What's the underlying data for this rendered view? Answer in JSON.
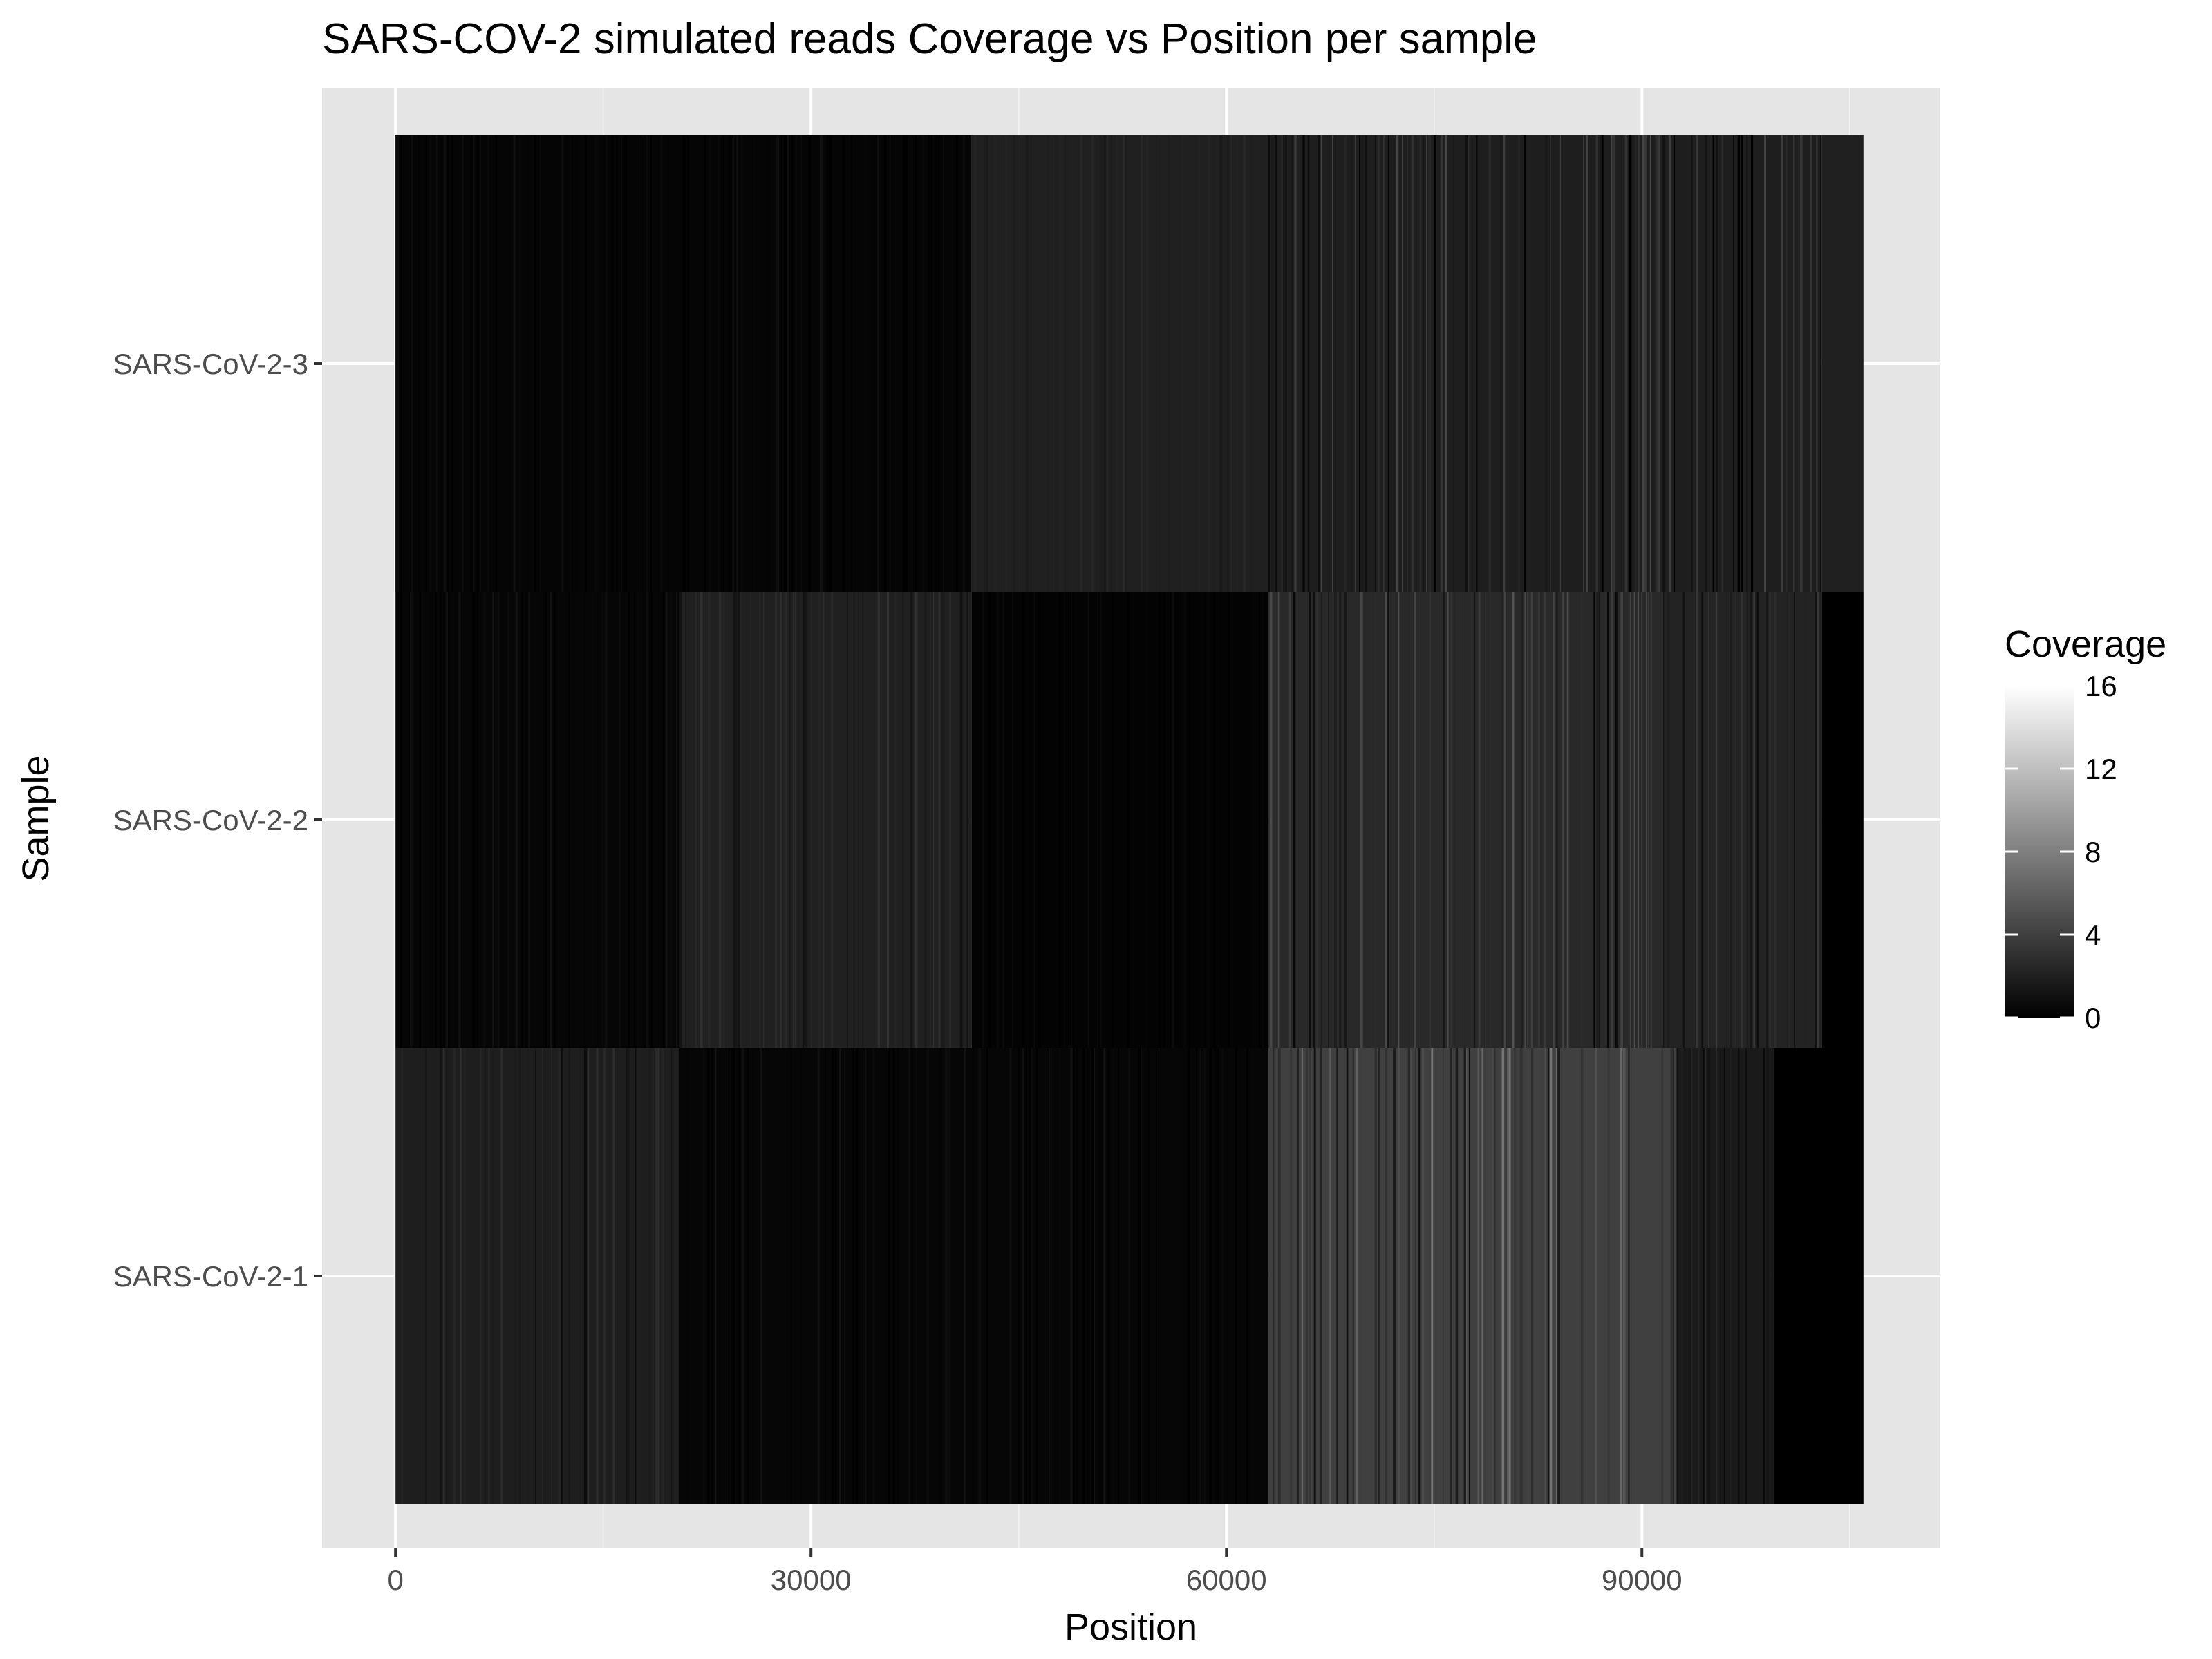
{
  "chart_data": {
    "type": "heatmap",
    "title": "SARS-COV-2 simulated reads Coverage vs Position per sample",
    "xlabel": "Position",
    "ylabel": "Sample",
    "xlim": [
      -5300,
      111500
    ],
    "x_ticks": [
      0,
      30000,
      60000,
      90000
    ],
    "x_tick_labels": [
      "0",
      "30000",
      "60000",
      "90000"
    ],
    "x_minor_ticks": [
      15000,
      45000,
      75000,
      105000
    ],
    "rows": [
      "SARS-CoV-2-1",
      "SARS-CoV-2-2",
      "SARS-CoV-2-3"
    ],
    "grid": true,
    "legend": {
      "title": "Coverage",
      "position": "right",
      "min": 0,
      "max": 16,
      "ticks": [
        0,
        4,
        8,
        12,
        16
      ],
      "low_color": "#000000",
      "high_color": "#ffffff"
    },
    "segments": [
      {
        "sample": "SARS-CoV-2-1",
        "start": 0,
        "end": 20500,
        "mean_coverage": 1.9,
        "variation": 1.2
      },
      {
        "sample": "SARS-CoV-2-1",
        "start": 20500,
        "end": 63000,
        "mean_coverage": 0.4,
        "variation": 1.0
      },
      {
        "sample": "SARS-CoV-2-1",
        "start": 63000,
        "end": 92500,
        "mean_coverage": 4.0,
        "variation": 3.5
      },
      {
        "sample": "SARS-CoV-2-1",
        "start": 92500,
        "end": 99500,
        "mean_coverage": 1.6,
        "variation": 1.4
      },
      {
        "sample": "SARS-CoV-2-1",
        "start": 99500,
        "end": 106000,
        "mean_coverage": 0.0,
        "variation": 0
      },
      {
        "sample": "SARS-CoV-2-2",
        "start": 0,
        "end": 20500,
        "mean_coverage": 0.4,
        "variation": 0.9
      },
      {
        "sample": "SARS-CoV-2-2",
        "start": 20500,
        "end": 41600,
        "mean_coverage": 2.0,
        "variation": 1.1
      },
      {
        "sample": "SARS-CoV-2-2",
        "start": 41600,
        "end": 63000,
        "mean_coverage": 0.2,
        "variation": 0.6
      },
      {
        "sample": "SARS-CoV-2-2",
        "start": 63000,
        "end": 91500,
        "mean_coverage": 2.6,
        "variation": 2.6
      },
      {
        "sample": "SARS-CoV-2-2",
        "start": 91500,
        "end": 103000,
        "mean_coverage": 2.2,
        "variation": 1.5
      },
      {
        "sample": "SARS-CoV-2-2",
        "start": 103000,
        "end": 106000,
        "mean_coverage": 0.0,
        "variation": 0
      },
      {
        "sample": "SARS-CoV-2-3",
        "start": 0,
        "end": 41600,
        "mean_coverage": 0.3,
        "variation": 0.8
      },
      {
        "sample": "SARS-CoV-2-3",
        "start": 41600,
        "end": 63000,
        "mean_coverage": 2.0,
        "variation": 0.5
      },
      {
        "sample": "SARS-CoV-2-3",
        "start": 63000,
        "end": 103000,
        "mean_coverage": 1.9,
        "variation": 2.8
      },
      {
        "sample": "SARS-CoV-2-3",
        "start": 103000,
        "end": 106000,
        "mean_coverage": 2.0,
        "variation": 0
      }
    ]
  }
}
